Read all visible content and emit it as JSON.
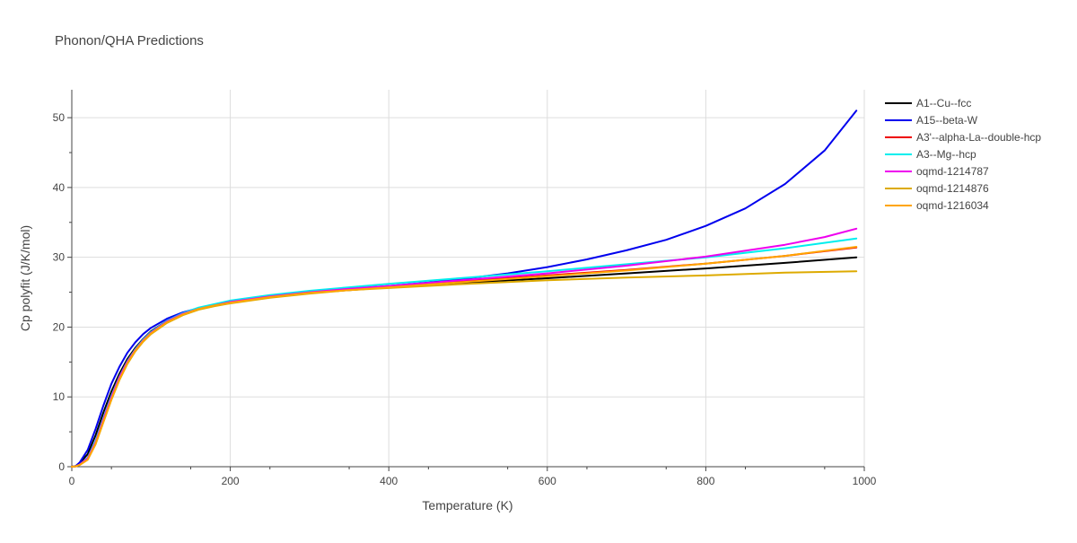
{
  "chart_data": {
    "type": "line",
    "title": "Phonon/QHA Predictions",
    "xlabel": "Temperature (K)",
    "ylabel": "Cp polyfit (J/K/mol)",
    "xlim": [
      0,
      1000
    ],
    "ylim": [
      0,
      54
    ],
    "xticks": [
      0,
      200,
      400,
      600,
      800,
      1000
    ],
    "yticks": [
      0,
      10,
      20,
      30,
      40,
      50
    ],
    "grid": true,
    "legend_position": "right",
    "series": [
      {
        "name": "A1--Cu--fcc",
        "color": "#000000",
        "x": [
          0,
          5,
          10,
          20,
          30,
          40,
          50,
          60,
          70,
          80,
          90,
          100,
          120,
          140,
          160,
          180,
          200,
          250,
          300,
          350,
          400,
          500,
          600,
          700,
          800,
          900,
          990
        ],
        "y": [
          0,
          0.1,
          0.5,
          1.8,
          4.5,
          7.8,
          10.8,
          13.3,
          15.4,
          17.0,
          18.3,
          19.4,
          20.9,
          21.9,
          22.6,
          23.1,
          23.5,
          24.3,
          24.9,
          25.3,
          25.7,
          26.4,
          27.0,
          27.7,
          28.4,
          29.2,
          30.0
        ]
      },
      {
        "name": "A15--beta-W",
        "color": "#0000ee",
        "x": [
          0,
          5,
          10,
          20,
          30,
          40,
          50,
          60,
          70,
          80,
          90,
          100,
          120,
          140,
          160,
          180,
          200,
          250,
          300,
          350,
          400,
          450,
          500,
          550,
          600,
          650,
          700,
          750,
          800,
          850,
          900,
          950,
          990
        ],
        "y": [
          0,
          0.1,
          0.6,
          2.4,
          5.4,
          8.8,
          11.9,
          14.3,
          16.3,
          17.8,
          19.0,
          19.9,
          21.2,
          22.1,
          22.7,
          23.2,
          23.6,
          24.4,
          25.0,
          25.5,
          25.9,
          26.4,
          27.0,
          27.7,
          28.6,
          29.7,
          31.0,
          32.5,
          34.5,
          37.0,
          40.5,
          45.3,
          51.0
        ]
      },
      {
        "name": "A3'--alpha-La--double-hcp",
        "color": "#ee0000",
        "x": [
          0,
          5,
          10,
          20,
          30,
          40,
          50,
          60,
          70,
          80,
          90,
          100,
          120,
          140,
          160,
          180,
          200,
          250,
          300,
          350,
          400,
          500,
          600,
          700,
          800,
          900,
          990
        ],
        "y": [
          0,
          0.05,
          0.3,
          1.2,
          3.5,
          6.8,
          10.0,
          12.8,
          15.0,
          16.7,
          18.1,
          19.2,
          20.8,
          21.9,
          22.6,
          23.1,
          23.5,
          24.3,
          24.9,
          25.4,
          25.8,
          26.6,
          27.4,
          28.2,
          29.1,
          30.2,
          31.4
        ]
      },
      {
        "name": "A3--Mg--hcp",
        "color": "#00eeee",
        "x": [
          0,
          5,
          10,
          20,
          30,
          40,
          50,
          60,
          70,
          80,
          90,
          100,
          120,
          140,
          160,
          180,
          200,
          250,
          300,
          350,
          400,
          500,
          600,
          700,
          800,
          900,
          990
        ],
        "y": [
          0,
          0.05,
          0.3,
          1.3,
          3.7,
          7.0,
          10.2,
          12.9,
          15.1,
          16.8,
          18.2,
          19.3,
          20.9,
          22.0,
          22.8,
          23.3,
          23.8,
          24.6,
          25.2,
          25.7,
          26.2,
          27.1,
          28.0,
          29.0,
          30.0,
          31.3,
          32.7
        ]
      },
      {
        "name": "oqmd-1214787",
        "color": "#ee00ee",
        "x": [
          0,
          5,
          10,
          20,
          30,
          40,
          50,
          60,
          70,
          80,
          90,
          100,
          120,
          140,
          160,
          180,
          200,
          250,
          300,
          350,
          400,
          500,
          600,
          700,
          800,
          900,
          950,
          990
        ],
        "y": [
          0,
          0.05,
          0.3,
          1.2,
          3.5,
          6.8,
          10.0,
          12.8,
          15.0,
          16.7,
          18.1,
          19.2,
          20.8,
          21.9,
          22.6,
          23.1,
          23.6,
          24.4,
          25.0,
          25.5,
          25.9,
          26.8,
          27.7,
          28.8,
          30.1,
          31.8,
          32.9,
          34.1
        ]
      },
      {
        "name": "oqmd-1214876",
        "color": "#ddaa00",
        "x": [
          0,
          5,
          10,
          20,
          30,
          40,
          50,
          60,
          70,
          80,
          90,
          100,
          120,
          140,
          160,
          180,
          200,
          250,
          300,
          350,
          400,
          500,
          600,
          700,
          800,
          900,
          990
        ],
        "y": [
          0,
          0.05,
          0.25,
          1.0,
          3.2,
          6.4,
          9.6,
          12.4,
          14.7,
          16.5,
          17.9,
          19.0,
          20.6,
          21.7,
          22.5,
          23.0,
          23.4,
          24.2,
          24.8,
          25.3,
          25.6,
          26.2,
          26.7,
          27.1,
          27.4,
          27.8,
          28.0
        ]
      },
      {
        "name": "oqmd-1216034",
        "color": "#ffa500",
        "x": [
          0,
          5,
          10,
          20,
          30,
          40,
          50,
          60,
          70,
          80,
          90,
          100,
          120,
          140,
          160,
          180,
          200,
          250,
          300,
          350,
          400,
          500,
          600,
          700,
          800,
          900,
          990
        ],
        "y": [
          0,
          0.05,
          0.25,
          1.0,
          3.3,
          6.5,
          9.7,
          12.5,
          14.8,
          16.6,
          18.0,
          19.1,
          20.7,
          21.8,
          22.6,
          23.1,
          23.5,
          24.3,
          24.9,
          25.3,
          25.7,
          26.5,
          27.3,
          28.1,
          29.1,
          30.2,
          31.5
        ]
      }
    ]
  }
}
